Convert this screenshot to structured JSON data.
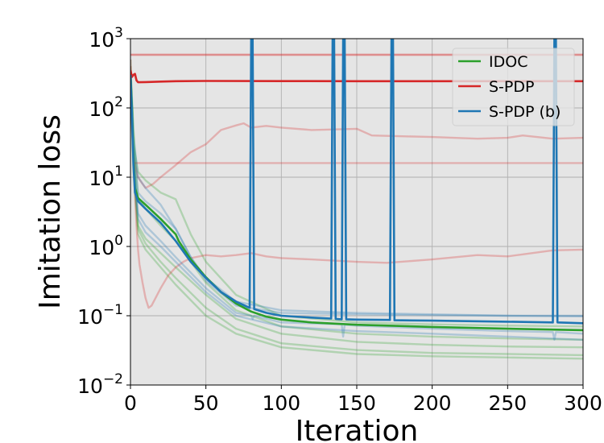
{
  "chart_data": {
    "type": "line",
    "xlabel": "Iteration",
    "ylabel": "Imitation loss",
    "xlim": [
      0,
      300
    ],
    "ylim": [
      0.01,
      1000
    ],
    "yscale": "log",
    "grid": true,
    "legend_position": "top-right",
    "xticks": [
      "0",
      "50",
      "100",
      "150",
      "200",
      "250",
      "300"
    ],
    "yticks": [
      {
        "base": "10",
        "exp": "3",
        "value": 1000
      },
      {
        "base": "10",
        "exp": "2",
        "value": 100
      },
      {
        "base": "10",
        "exp": "1",
        "value": 10
      },
      {
        "base": "10",
        "exp": "0",
        "value": 1
      },
      {
        "base": "10",
        "exp": "−1",
        "value": 0.1
      },
      {
        "base": "10",
        "exp": "−2",
        "value": 0.01
      }
    ],
    "colors": {
      "IDOC": "#2ca02c",
      "S-PDP": "#d62728",
      "S-PDP (b)": "#1f77b4",
      "background": "#e5e5e5"
    },
    "legend": [
      "IDOC",
      "S-PDP",
      "S-PDP (b)"
    ],
    "series": [
      {
        "name": "IDOC",
        "style": "mean",
        "x": [
          0,
          1,
          2,
          3,
          5,
          10,
          20,
          30,
          32,
          40,
          50,
          60,
          70,
          80,
          90,
          100,
          120,
          150,
          200,
          250,
          300
        ],
        "y": [
          300,
          100,
          20,
          7,
          5,
          4,
          2.5,
          1.5,
          1.2,
          0.65,
          0.36,
          0.22,
          0.15,
          0.115,
          0.097,
          0.088,
          0.08,
          0.074,
          0.069,
          0.065,
          0.062
        ]
      },
      {
        "name": "S-PDP",
        "style": "mean",
        "x": [
          0,
          1,
          2,
          3,
          4,
          5,
          6,
          10,
          20,
          30,
          50,
          100,
          150,
          200,
          250,
          300
        ],
        "y": [
          350,
          280,
          300,
          310,
          250,
          235,
          235,
          236,
          240,
          243,
          245,
          244,
          243,
          243,
          243,
          243
        ]
      },
      {
        "name": "S-PDP (b)",
        "style": "mean",
        "x": [
          0,
          1,
          2,
          3,
          5,
          10,
          20,
          30,
          40,
          50,
          60,
          70,
          79,
          80,
          81,
          82,
          90,
          100,
          120,
          133,
          134,
          135,
          136,
          140,
          141,
          142,
          143,
          150,
          172,
          173,
          174,
          175,
          200,
          250,
          280,
          281,
          282,
          283,
          300
        ],
        "y": [
          300,
          80,
          15,
          6,
          4.5,
          3.5,
          2.2,
          1.2,
          0.6,
          0.35,
          0.22,
          0.16,
          0.13,
          1000,
          1000,
          0.125,
          0.11,
          0.1,
          0.094,
          0.091,
          1000,
          1000,
          0.09,
          0.089,
          1000,
          1000,
          0.089,
          0.088,
          0.087,
          1000,
          1000,
          0.086,
          0.085,
          0.082,
          0.08,
          1000,
          1000,
          0.08,
          0.078
        ]
      },
      {
        "name": "",
        "group": "IDOC",
        "style": "faint",
        "x": [
          0,
          2,
          5,
          10,
          20,
          30,
          50,
          70,
          100,
          150,
          200,
          250,
          300
        ],
        "y": [
          400,
          50,
          5,
          3.5,
          2,
          1.2,
          0.3,
          0.12,
          0.07,
          0.055,
          0.05,
          0.047,
          0.045
        ]
      },
      {
        "name": "",
        "group": "IDOC",
        "style": "faint",
        "x": [
          0,
          2,
          5,
          10,
          20,
          30,
          50,
          70,
          100,
          150,
          200,
          250,
          300
        ],
        "y": [
          500,
          20,
          2,
          1.3,
          0.8,
          0.5,
          0.2,
          0.09,
          0.055,
          0.042,
          0.038,
          0.036,
          0.035
        ]
      },
      {
        "name": "",
        "group": "IDOC",
        "style": "faint",
        "x": [
          0,
          2,
          5,
          10,
          20,
          30,
          50,
          70,
          100,
          150,
          200,
          250,
          300
        ],
        "y": [
          300,
          15,
          1.8,
          1.1,
          0.6,
          0.35,
          0.13,
          0.065,
          0.04,
          0.032,
          0.029,
          0.028,
          0.027
        ]
      },
      {
        "name": "",
        "group": "IDOC",
        "style": "faint",
        "x": [
          0,
          2,
          5,
          10,
          20,
          30,
          50,
          70,
          100,
          150,
          200,
          250,
          300
        ],
        "y": [
          250,
          12,
          1.5,
          0.9,
          0.5,
          0.28,
          0.1,
          0.055,
          0.035,
          0.028,
          0.026,
          0.025,
          0.024
        ]
      },
      {
        "name": "",
        "group": "IDOC",
        "style": "faint",
        "x": [
          0,
          2,
          5,
          10,
          20,
          30,
          40,
          50,
          70,
          100,
          150,
          200,
          250,
          300
        ],
        "y": [
          350,
          30,
          12,
          9,
          6,
          4.8,
          1.5,
          0.6,
          0.2,
          0.1,
          0.08,
          0.075,
          0.072,
          0.07
        ]
      },
      {
        "name": "",
        "group": "S-PDP",
        "style": "faint",
        "x": [
          0,
          300
        ],
        "y": [
          590,
          590
        ]
      },
      {
        "name": "",
        "group": "S-PDP",
        "style": "faint",
        "x": [
          0,
          300
        ],
        "y": [
          580,
          580
        ]
      },
      {
        "name": "",
        "group": "S-PDP",
        "style": "faint",
        "x": [
          2,
          300
        ],
        "y": [
          16,
          16
        ]
      },
      {
        "name": "",
        "group": "S-PDP",
        "style": "faint",
        "x": [
          0,
          1,
          2,
          3,
          5,
          8,
          10,
          15,
          20,
          30,
          40,
          50,
          60,
          70,
          75,
          80,
          90,
          100,
          120,
          150,
          160,
          200,
          230,
          250,
          260,
          280,
          300
        ],
        "y": [
          500,
          50,
          20,
          15,
          10,
          8,
          7,
          8,
          10,
          15,
          23,
          30,
          48,
          56,
          60,
          52,
          55,
          52,
          48,
          50,
          40,
          38,
          36,
          37,
          40,
          36,
          37
        ]
      },
      {
        "name": "",
        "group": "S-PDP",
        "style": "faint",
        "x": [
          0,
          1,
          2,
          3,
          4,
          5,
          6,
          8,
          10,
          12,
          14,
          16,
          20,
          25,
          30,
          35,
          40,
          50,
          60,
          70,
          80,
          90,
          100,
          120,
          150,
          170,
          200,
          230,
          250,
          280,
          300
        ],
        "y": [
          400,
          80,
          20,
          6,
          2,
          0.9,
          0.55,
          0.3,
          0.18,
          0.13,
          0.14,
          0.17,
          0.25,
          0.38,
          0.5,
          0.6,
          0.68,
          0.75,
          0.72,
          0.75,
          0.8,
          0.72,
          0.68,
          0.65,
          0.6,
          0.58,
          0.65,
          0.75,
          0.72,
          0.88,
          0.9
        ]
      },
      {
        "name": "",
        "group": "S-PDP (b)",
        "style": "faint",
        "x": [
          0,
          2,
          5,
          10,
          20,
          30,
          40,
          50,
          70,
          100,
          150,
          200,
          250,
          300
        ],
        "y": [
          350,
          40,
          10,
          7,
          4,
          1.8,
          0.7,
          0.32,
          0.14,
          0.11,
          0.105,
          0.102,
          0.1,
          0.098
        ]
      },
      {
        "name": "",
        "group": "S-PDP (b)",
        "style": "faint",
        "x": [
          0,
          2,
          5,
          10,
          20,
          30,
          50,
          70,
          80,
          81,
          82,
          100,
          140,
          141,
          142,
          150,
          200,
          250,
          280,
          281,
          282,
          300
        ],
        "y": [
          300,
          20,
          3,
          2,
          1.2,
          0.7,
          0.25,
          0.11,
          0.1,
          0.09,
          0.1,
          0.08,
          0.075,
          0.05,
          0.074,
          0.072,
          0.065,
          0.06,
          0.058,
          0.045,
          0.058,
          0.055
        ]
      },
      {
        "name": "",
        "group": "S-PDP (b)",
        "style": "faint",
        "x": [
          0,
          2,
          5,
          10,
          20,
          30,
          50,
          70,
          100,
          150,
          200,
          250,
          300
        ],
        "y": [
          280,
          15,
          2.5,
          1.6,
          1,
          0.6,
          0.22,
          0.1,
          0.07,
          0.06,
          0.055,
          0.05,
          0.045
        ]
      },
      {
        "name": "",
        "group": "S-PDP (b)",
        "style": "faint",
        "x": [
          0,
          2,
          5,
          10,
          20,
          30,
          40,
          50,
          70,
          100,
          150,
          200,
          250,
          300
        ],
        "y": [
          300,
          25,
          6,
          4.5,
          3,
          1.8,
          0.7,
          0.35,
          0.16,
          0.12,
          0.11,
          0.105,
          0.1,
          0.1
        ]
      }
    ]
  }
}
